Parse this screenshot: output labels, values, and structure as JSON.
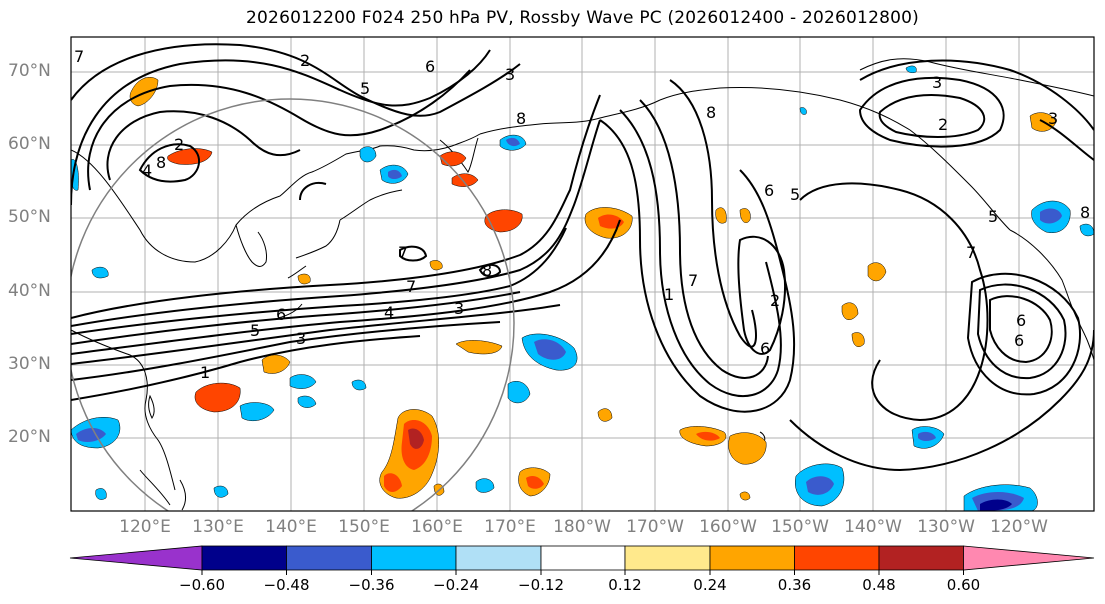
{
  "title": "2026012200 F024 250 hPa PV, Rossby Wave PC (2026012400 - 2026012800)",
  "lat_labels": [
    "70°N",
    "60°N",
    "50°N",
    "40°N",
    "30°N",
    "20°N"
  ],
  "lon_labels": [
    "120°E",
    "130°E",
    "140°E",
    "150°E",
    "160°E",
    "170°E",
    "180°W",
    "170°W",
    "160°W",
    "150°W",
    "140°W",
    "130°W",
    "120°W"
  ],
  "colorbar": {
    "ticks": [
      "−0.60",
      "−0.48",
      "−0.36",
      "−0.24",
      "−0.12",
      "0.12",
      "0.24",
      "0.36",
      "0.48",
      "0.60"
    ],
    "colors": [
      "#9932cc",
      "#00008b",
      "#3a5bcd",
      "#00bfff",
      "#b0e0f6",
      "#ffffff",
      "#ffe98c",
      "#ffa500",
      "#ff4500",
      "#b22222",
      "#ff88b0"
    ]
  },
  "contour_labels": [
    "7",
    "2",
    "6",
    "5",
    "3",
    "8",
    "3",
    "8",
    "2",
    "3",
    "2",
    "4",
    "8",
    "7",
    "8",
    "7",
    "4",
    "3",
    "6",
    "5",
    "1",
    "3",
    "6",
    "5",
    "7",
    "1",
    "2",
    "6",
    "6",
    "6",
    "5",
    "7",
    "8"
  ]
}
